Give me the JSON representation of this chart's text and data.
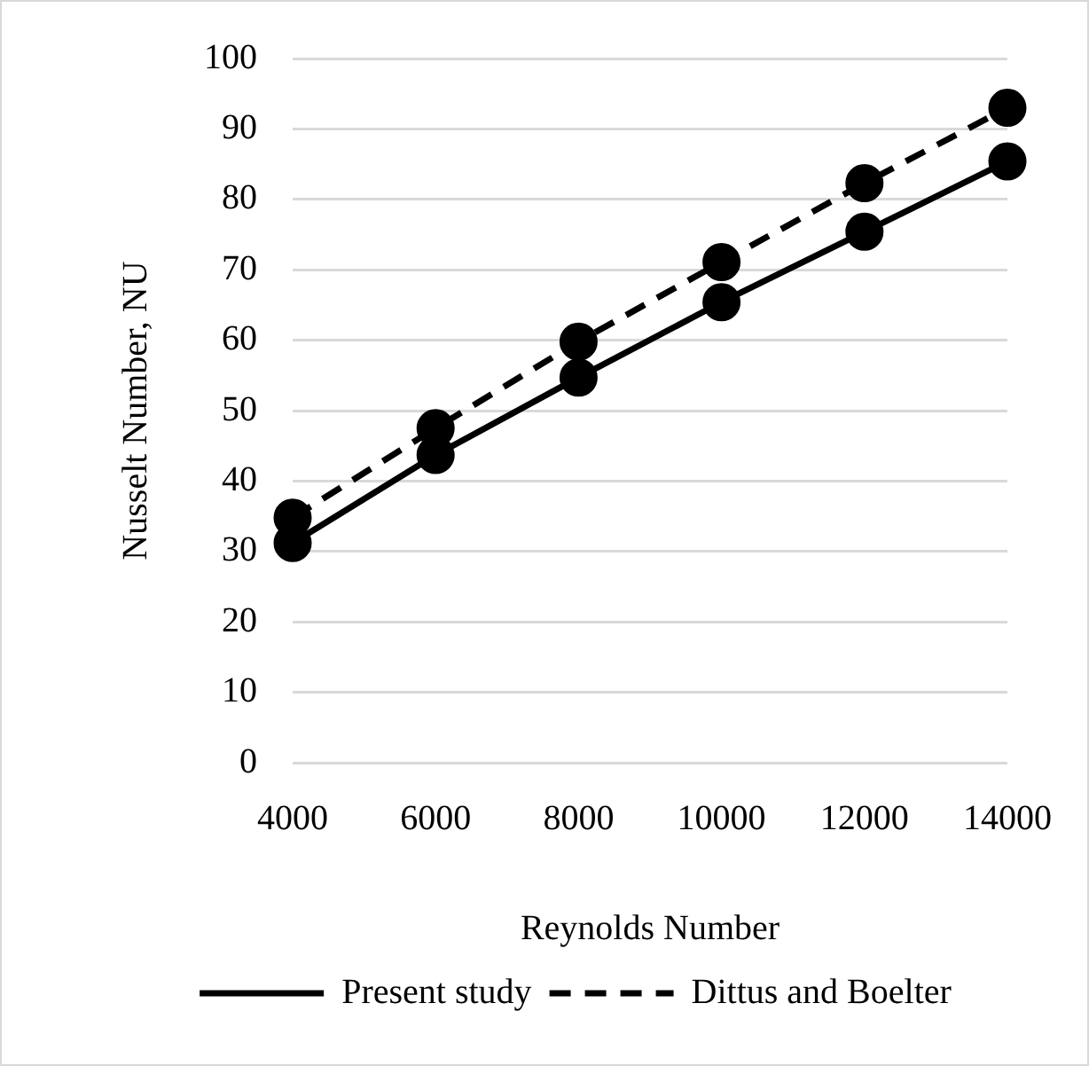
{
  "chart_data": {
    "type": "line",
    "xlabel": "Reynolds Number",
    "ylabel": "Nusselt Number, NU",
    "categories": [
      "4000",
      "6000",
      "8000",
      "10000",
      "12000",
      "14000"
    ],
    "series": [
      {
        "name": "Present study",
        "color": "#000000",
        "line_style": "solid",
        "values": [
          31.2,
          43.7,
          54.7,
          65.4,
          75.4,
          85.4
        ]
      },
      {
        "name": "Dittus and Boelter",
        "color": "#000000",
        "line_style": "dashed",
        "values": [
          34.8,
          47.5,
          59.8,
          71.1,
          82.3,
          93.0
        ]
      }
    ],
    "ylim": [
      0,
      100
    ],
    "yticks": [
      0,
      10,
      20,
      30,
      40,
      50,
      60,
      70,
      80,
      90,
      100
    ],
    "grid": "y",
    "legend": "bottom",
    "marker": "circle"
  }
}
